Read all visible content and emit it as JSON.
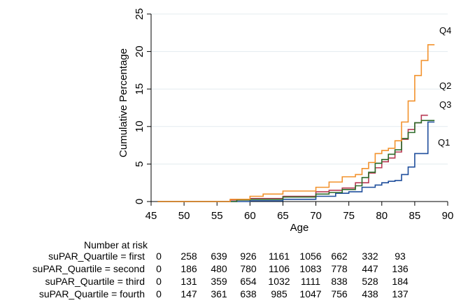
{
  "chart_data": {
    "type": "line",
    "title": "",
    "xlabel": "Age",
    "ylabel": "Cumulative Percentage",
    "xlim": [
      45,
      90
    ],
    "ylim": [
      0,
      25
    ],
    "xticks": [
      45,
      50,
      55,
      60,
      65,
      70,
      75,
      80,
      85,
      90
    ],
    "yticks": [
      0,
      5,
      10,
      15,
      20,
      25
    ],
    "grid": "horizontal",
    "series": [
      {
        "label": "Q1",
        "color": "#1f4e9c",
        "points": [
          [
            46,
            0
          ],
          [
            56,
            0
          ],
          [
            60,
            0.1
          ],
          [
            65,
            0.3
          ],
          [
            70,
            0.7
          ],
          [
            73,
            1.1
          ],
          [
            75,
            1.3
          ],
          [
            77,
            1.9
          ],
          [
            79,
            2.2
          ],
          [
            80,
            2.5
          ],
          [
            81,
            2.7
          ],
          [
            82,
            2.8
          ],
          [
            83,
            3.6
          ],
          [
            84,
            4.6
          ],
          [
            85,
            6.4
          ],
          [
            86,
            6.4
          ],
          [
            87,
            10.6
          ],
          [
            88,
            10.6
          ]
        ]
      },
      {
        "label": "Q2",
        "color": "#b83a54",
        "points": [
          [
            46,
            0
          ],
          [
            55,
            0
          ],
          [
            57,
            0.2
          ],
          [
            60,
            0.4
          ],
          [
            65,
            0.7
          ],
          [
            70,
            1.3
          ],
          [
            72,
            1.5
          ],
          [
            74,
            1.8
          ],
          [
            76,
            2.5
          ],
          [
            78,
            3.8
          ],
          [
            79,
            4.5
          ],
          [
            80,
            5.3
          ],
          [
            81,
            5.8
          ],
          [
            82,
            6.6
          ],
          [
            83,
            8.3
          ],
          [
            84,
            9.6
          ],
          [
            85,
            10.5
          ],
          [
            86,
            11.5
          ],
          [
            87,
            11.5
          ]
        ]
      },
      {
        "label": "Q3",
        "color": "#2e6b2a",
        "points": [
          [
            46,
            0
          ],
          [
            56,
            0
          ],
          [
            58,
            0.2
          ],
          [
            60,
            0.3
          ],
          [
            65,
            0.6
          ],
          [
            70,
            1.0
          ],
          [
            72,
            1.2
          ],
          [
            74,
            1.6
          ],
          [
            76,
            2.1
          ],
          [
            77,
            3.2
          ],
          [
            78,
            3.9
          ],
          [
            79,
            5.1
          ],
          [
            80,
            5.6
          ],
          [
            81,
            6.3
          ],
          [
            82,
            6.9
          ],
          [
            83,
            8.4
          ],
          [
            84,
            9.2
          ],
          [
            85,
            10.5
          ],
          [
            86,
            10.8
          ],
          [
            88,
            10.8
          ]
        ]
      },
      {
        "label": "Q4",
        "color": "#f2922d",
        "points": [
          [
            46,
            0
          ],
          [
            56,
            0
          ],
          [
            57,
            0.3
          ],
          [
            60,
            0.7
          ],
          [
            62,
            1.0
          ],
          [
            65,
            1.4
          ],
          [
            70,
            1.9
          ],
          [
            72,
            2.6
          ],
          [
            74,
            3.3
          ],
          [
            76,
            3.6
          ],
          [
            77,
            4.4
          ],
          [
            78,
            5.2
          ],
          [
            79,
            6.4
          ],
          [
            80,
            6.8
          ],
          [
            81,
            7.1
          ],
          [
            82,
            8.1
          ],
          [
            83,
            10.6
          ],
          [
            84,
            13.4
          ],
          [
            85,
            16.8
          ],
          [
            86,
            18.8
          ],
          [
            87,
            20.9
          ],
          [
            88,
            20.9
          ]
        ]
      }
    ],
    "risk_table": {
      "header": "Number at risk",
      "rows": [
        {
          "label": "suPAR_Quartile = first",
          "values": [
            "0",
            "258",
            "639",
            "926",
            "1161",
            "1056",
            "662",
            "332",
            "93"
          ]
        },
        {
          "label": "suPAR_Quartile = second",
          "values": [
            "0",
            "186",
            "480",
            "780",
            "1106",
            "1083",
            "778",
            "447",
            "136"
          ]
        },
        {
          "label": "suPAR_Quartile = third",
          "values": [
            "0",
            "131",
            "359",
            "654",
            "1032",
            "1111",
            "838",
            "528",
            "184"
          ]
        },
        {
          "label": "suPAR_Quartile = fourth",
          "values": [
            "0",
            "147",
            "361",
            "638",
            "985",
            "1047",
            "756",
            "438",
            "137"
          ]
        }
      ]
    }
  }
}
